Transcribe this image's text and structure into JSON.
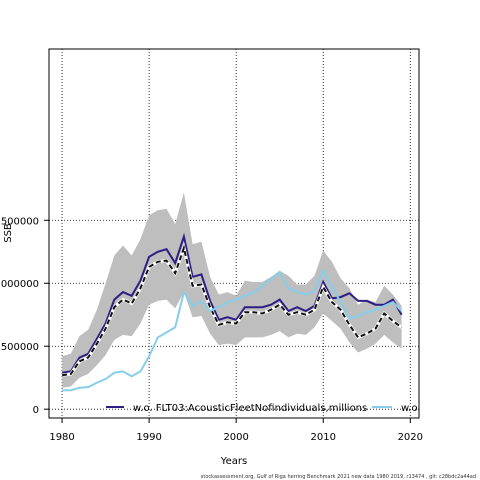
{
  "chart_data": {
    "type": "line",
    "xlabel": "Years",
    "ylabel": "SSB",
    "xlim": [
      1978.5,
      2021
    ],
    "ylim": [
      -70000,
      2860000
    ],
    "x_ticks": [
      1980,
      1990,
      2000,
      2010,
      2020
    ],
    "y_ticks": [
      0,
      500000,
      1000000,
      1500000
    ],
    "y_tick_labels": [
      "0",
      "500000",
      "1000000",
      "1500000"
    ],
    "grid": "dotted",
    "x": [
      1980,
      1981,
      1982,
      1983,
      1984,
      1985,
      1986,
      1987,
      1988,
      1989,
      1990,
      1991,
      1992,
      1993,
      1994,
      1995,
      1996,
      1997,
      1998,
      1999,
      2000,
      2001,
      2002,
      2003,
      2004,
      2005,
      2006,
      2007,
      2008,
      2009,
      2010,
      2011,
      2012,
      2013,
      2014,
      2015,
      2016,
      2017,
      2018,
      2019
    ],
    "band": {
      "color": "#bebebe",
      "upper": [
        420000,
        440000,
        580000,
        630000,
        790000,
        1000000,
        1220000,
        1300000,
        1220000,
        1350000,
        1540000,
        1580000,
        1590000,
        1470000,
        1720000,
        1310000,
        1330000,
        1050000,
        910000,
        930000,
        900000,
        1020000,
        1010000,
        1010000,
        1050000,
        1100000,
        1060000,
        990000,
        990000,
        1060000,
        1260000,
        1170000,
        1040000,
        960000,
        830000,
        870000,
        850000,
        980000,
        910000,
        820000
      ],
      "lower": [
        170000,
        180000,
        250000,
        280000,
        350000,
        430000,
        550000,
        590000,
        580000,
        680000,
        830000,
        860000,
        870000,
        800000,
        930000,
        730000,
        740000,
        600000,
        510000,
        520000,
        510000,
        570000,
        570000,
        570000,
        590000,
        620000,
        570000,
        600000,
        590000,
        650000,
        760000,
        700000,
        640000,
        530000,
        450000,
        480000,
        520000,
        590000,
        530000,
        480000
      ]
    },
    "series": [
      {
        "name": "w.o. FLT03:AcousticFleetNofindividuals,millions",
        "color": "#2e1e84",
        "values": [
          290000,
          300000,
          410000,
          440000,
          560000,
          680000,
          870000,
          930000,
          900000,
          1020000,
          1210000,
          1250000,
          1270000,
          1160000,
          1370000,
          1050000,
          1070000,
          860000,
          710000,
          730000,
          710000,
          810000,
          810000,
          810000,
          830000,
          870000,
          780000,
          810000,
          780000,
          820000,
          1010000,
          880000,
          890000,
          920000,
          860000,
          860000,
          830000,
          830000,
          870000,
          750000
        ]
      },
      {
        "name": "",
        "color": "#111111",
        "dashed": true,
        "values": [
          270000,
          280000,
          380000,
          410000,
          520000,
          640000,
          810000,
          870000,
          840000,
          960000,
          1130000,
          1170000,
          1180000,
          1080000,
          1280000,
          980000,
          990000,
          810000,
          670000,
          690000,
          680000,
          770000,
          770000,
          760000,
          790000,
          830000,
          750000,
          770000,
          750000,
          790000,
          970000,
          850000,
          790000,
          670000,
          570000,
          600000,
          640000,
          760000,
          700000,
          650000
        ]
      },
      {
        "name": "w.o.",
        "color": "#87ceeb",
        "values": [
          150000,
          150000,
          170000,
          175000,
          210000,
          240000,
          290000,
          300000,
          260000,
          300000,
          420000,
          570000,
          610000,
          650000,
          930000,
          820000,
          860000,
          780000,
          810000,
          850000,
          870000,
          900000,
          930000,
          980000,
          1030000,
          1090000,
          960000,
          930000,
          910000,
          940000,
          1100000,
          970000,
          850000,
          720000,
          740000,
          770000,
          790000,
          820000,
          850000,
          780000
        ]
      }
    ]
  },
  "footer": "stockassessment.org, Gulf of Riga herring Benchmark 2021 new data 1980 2019, r13474 , git: c28bdc2a44ad"
}
